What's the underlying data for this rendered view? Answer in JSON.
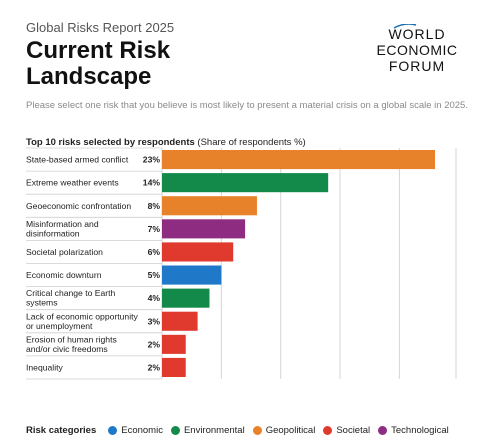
{
  "header": {
    "report_name": "Global Risks Report 2025",
    "title_line1": "Current Risk",
    "title_line2": "Landscape",
    "logo_line1": "WORLD",
    "logo_line2": "ECONOMIC",
    "logo_line3": "FORUM"
  },
  "prompt": "Please select one risk that you believe is most likely to present a material crisis on a global scale in 2025.",
  "chart_heading": {
    "bold": "Top 10 risks selected by respondents",
    "normal": "(Share of respondents %)"
  },
  "colors": {
    "Economic": "#1f78c8",
    "Environmental": "#138a4a",
    "Geopolitical": "#e8822a",
    "Societal": "#e03a2f",
    "Technological": "#8e2c82"
  },
  "chart_data": {
    "type": "bar",
    "orientation": "horizontal",
    "title": "Top 10 risks selected by respondents",
    "xlabel": "(Share of respondents %)",
    "unit": "%",
    "xlim": [
      0,
      25
    ],
    "grid": true,
    "categories": [
      [
        "State-based armed conflict"
      ],
      [
        "Extreme weather events"
      ],
      [
        "Geoeconomic confrontation"
      ],
      [
        "Misinformation and",
        "disinformation"
      ],
      [
        "Societal polarization"
      ],
      [
        "Economic downturn"
      ],
      [
        "Critical change to Earth",
        "systems"
      ],
      [
        "Lack of economic opportunity",
        "or unemployment"
      ],
      [
        "Erosion of human rights",
        "and/or civic freedoms"
      ],
      [
        "Inequality"
      ]
    ],
    "values": [
      23,
      14,
      8,
      7,
      6,
      5,
      4,
      3,
      2,
      2
    ],
    "value_labels": [
      "23%",
      "14%",
      "8%",
      "7%",
      "6%",
      "5%",
      "4%",
      "3%",
      "2%",
      "2%"
    ],
    "risk_category": [
      "Geopolitical",
      "Environmental",
      "Geopolitical",
      "Technological",
      "Societal",
      "Economic",
      "Environmental",
      "Societal",
      "Societal",
      "Societal"
    ],
    "legend_title": "Risk categories",
    "legend": [
      "Economic",
      "Environmental",
      "Geopolitical",
      "Societal",
      "Technological"
    ],
    "legend_position": "bottom"
  }
}
